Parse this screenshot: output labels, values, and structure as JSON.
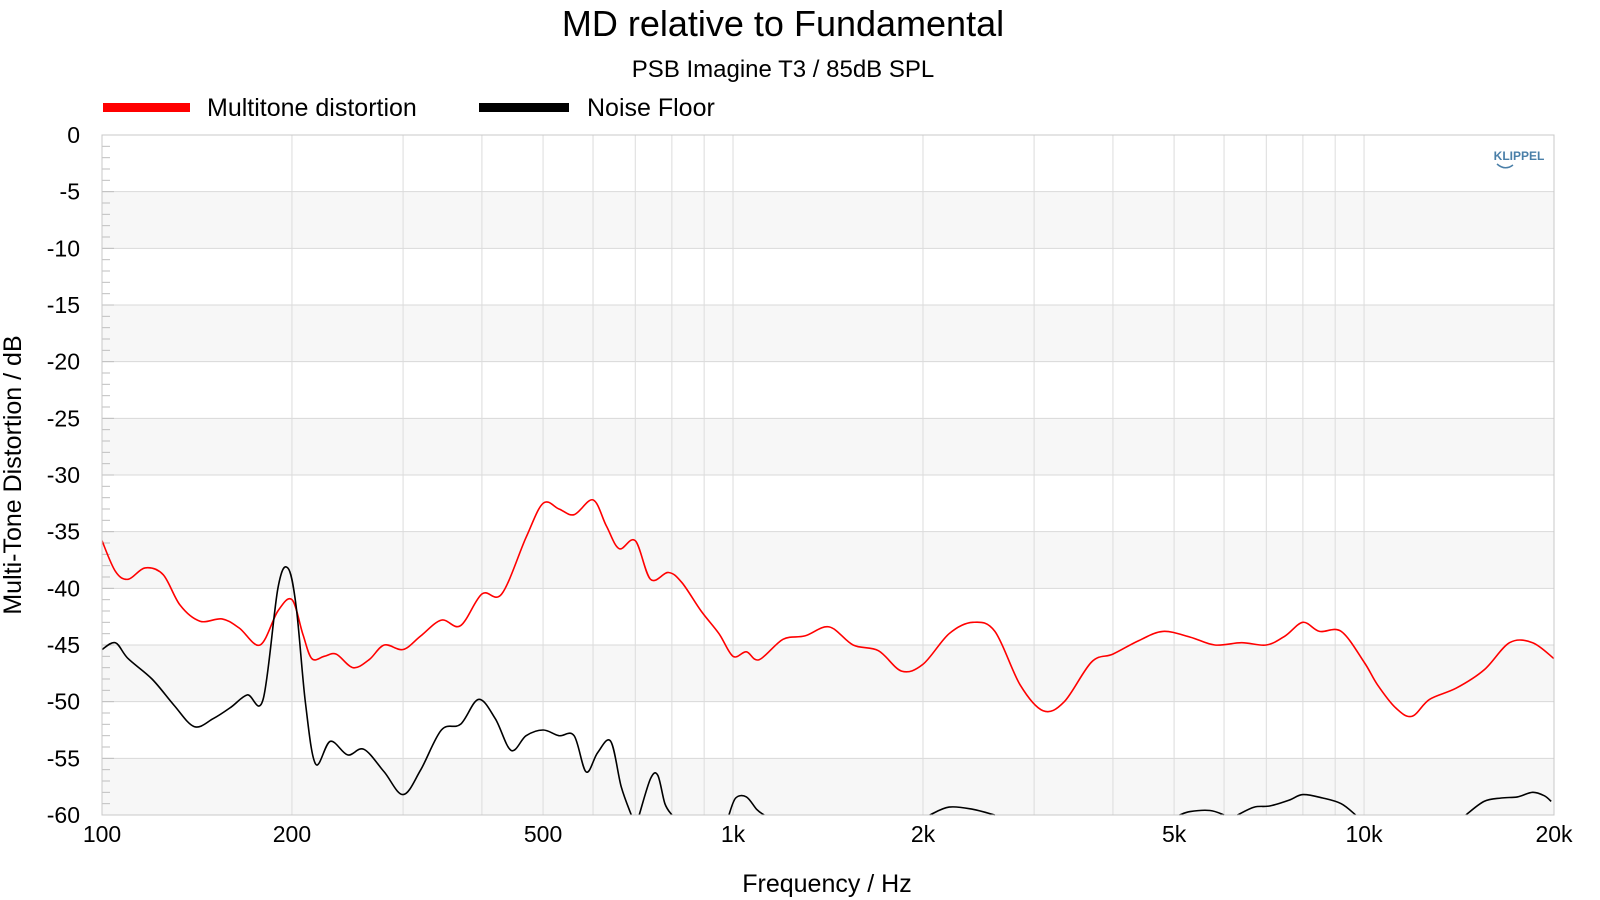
{
  "chart_data": {
    "type": "line",
    "title": "MD relative to Fundamental",
    "subtitle": "PSB Imagine T3 / 85dB SPL",
    "xlabel": "Frequency / Hz",
    "ylabel": "Multi-Tone Distortion / dB",
    "xscale": "log",
    "xlim": [
      100,
      20000
    ],
    "ylim": [
      -60,
      0
    ],
    "x_ticks": [
      100,
      200,
      500,
      1000,
      2000,
      5000,
      10000,
      20000
    ],
    "x_tick_labels": [
      "100",
      "200",
      "500",
      "1k",
      "2k",
      "5k",
      "10k",
      "20k"
    ],
    "y_ticks": [
      0,
      -5,
      -10,
      -15,
      -20,
      -25,
      -30,
      -35,
      -40,
      -45,
      -50,
      -55,
      -60
    ],
    "y_tick_labels": [
      "0",
      "-5",
      "-10",
      "-15",
      "-20",
      "-25",
      "-30",
      "-35",
      "-40",
      "-45",
      "-50",
      "-55",
      "-60"
    ],
    "grid": true,
    "legend_position": "top-left",
    "series": [
      {
        "name": "Multitone distortion",
        "color": "#ff0000",
        "points": [
          [
            100,
            -35.8
          ],
          [
            105,
            -38.5
          ],
          [
            110,
            -39.2
          ],
          [
            117,
            -38.2
          ],
          [
            125,
            -38.8
          ],
          [
            133,
            -41.5
          ],
          [
            143,
            -42.9
          ],
          [
            155,
            -42.7
          ],
          [
            165,
            -43.5
          ],
          [
            178,
            -45.0
          ],
          [
            190,
            -42.0
          ],
          [
            200,
            -41.0
          ],
          [
            208,
            -44.0
          ],
          [
            215,
            -46.2
          ],
          [
            225,
            -46.0
          ],
          [
            235,
            -45.8
          ],
          [
            250,
            -47.0
          ],
          [
            265,
            -46.3
          ],
          [
            280,
            -45.0
          ],
          [
            300,
            -45.4
          ],
          [
            320,
            -44.2
          ],
          [
            345,
            -42.8
          ],
          [
            370,
            -43.3
          ],
          [
            400,
            -40.5
          ],
          [
            430,
            -40.5
          ],
          [
            470,
            -35.5
          ],
          [
            500,
            -32.5
          ],
          [
            530,
            -33.0
          ],
          [
            560,
            -33.5
          ],
          [
            600,
            -32.2
          ],
          [
            630,
            -34.5
          ],
          [
            660,
            -36.5
          ],
          [
            700,
            -35.8
          ],
          [
            740,
            -39.2
          ],
          [
            790,
            -38.6
          ],
          [
            830,
            -39.5
          ],
          [
            890,
            -42.0
          ],
          [
            950,
            -44.0
          ],
          [
            1000,
            -46.0
          ],
          [
            1050,
            -45.6
          ],
          [
            1100,
            -46.3
          ],
          [
            1200,
            -44.5
          ],
          [
            1300,
            -44.2
          ],
          [
            1420,
            -43.4
          ],
          [
            1550,
            -45.0
          ],
          [
            1700,
            -45.5
          ],
          [
            1850,
            -47.3
          ],
          [
            2000,
            -46.7
          ],
          [
            2200,
            -44.0
          ],
          [
            2400,
            -43.0
          ],
          [
            2600,
            -43.8
          ],
          [
            2850,
            -48.5
          ],
          [
            3100,
            -50.8
          ],
          [
            3350,
            -50.0
          ],
          [
            3700,
            -46.5
          ],
          [
            4000,
            -45.8
          ],
          [
            4400,
            -44.6
          ],
          [
            4800,
            -43.8
          ],
          [
            5300,
            -44.3
          ],
          [
            5800,
            -45.0
          ],
          [
            6400,
            -44.8
          ],
          [
            7000,
            -45.0
          ],
          [
            7500,
            -44.2
          ],
          [
            8000,
            -43.0
          ],
          [
            8500,
            -43.8
          ],
          [
            9200,
            -43.8
          ],
          [
            10000,
            -46.5
          ],
          [
            10500,
            -48.5
          ],
          [
            11200,
            -50.5
          ],
          [
            11900,
            -51.3
          ],
          [
            12700,
            -49.8
          ],
          [
            14000,
            -48.8
          ],
          [
            15500,
            -47.2
          ],
          [
            17000,
            -44.8
          ],
          [
            18500,
            -44.8
          ],
          [
            20000,
            -46.2
          ]
        ]
      },
      {
        "name": "Noise Floor",
        "color": "#000000",
        "segments": [
          [
            [
              100,
              -45.4
            ],
            [
              105,
              -44.8
            ],
            [
              110,
              -46.2
            ],
            [
              120,
              -48.0
            ],
            [
              130,
              -50.3
            ],
            [
              140,
              -52.2
            ],
            [
              150,
              -51.5
            ],
            [
              160,
              -50.5
            ],
            [
              170,
              -49.4
            ],
            [
              180,
              -49.8
            ],
            [
              190,
              -40.0
            ],
            [
              197,
              -38.2
            ],
            [
              203,
              -41.5
            ],
            [
              210,
              -50.0
            ],
            [
              218,
              -55.5
            ],
            [
              230,
              -53.5
            ],
            [
              245,
              -54.7
            ],
            [
              260,
              -54.2
            ],
            [
              280,
              -56.2
            ],
            [
              300,
              -58.2
            ],
            [
              320,
              -56.0
            ],
            [
              345,
              -52.5
            ],
            [
              370,
              -52.0
            ],
            [
              395,
              -49.8
            ],
            [
              420,
              -51.5
            ],
            [
              445,
              -54.3
            ],
            [
              470,
              -53.0
            ],
            [
              500,
              -52.5
            ],
            [
              530,
              -53.0
            ],
            [
              560,
              -53.0
            ],
            [
              585,
              -56.2
            ],
            [
              610,
              -54.5
            ],
            [
              640,
              -53.5
            ],
            [
              665,
              -57.5
            ],
            [
              690,
              -60.0
            ]
          ],
          [
            [
              710,
              -60.0
            ],
            [
              740,
              -56.8
            ],
            [
              760,
              -56.5
            ],
            [
              780,
              -59.0
            ],
            [
              800,
              -60.0
            ]
          ],
          [
            [
              985,
              -60.0
            ],
            [
              1010,
              -58.5
            ],
            [
              1050,
              -58.4
            ],
            [
              1090,
              -59.5
            ],
            [
              1120,
              -60.0
            ]
          ],
          [
            [
              2050,
              -60.0
            ],
            [
              2200,
              -59.3
            ],
            [
              2400,
              -59.5
            ],
            [
              2600,
              -60.0
            ]
          ],
          [
            [
              5100,
              -60.0
            ],
            [
              5300,
              -59.7
            ],
            [
              5700,
              -59.6
            ],
            [
              6000,
              -60.0
            ]
          ],
          [
            [
              6300,
              -60.0
            ],
            [
              6700,
              -59.3
            ],
            [
              7100,
              -59.2
            ],
            [
              7600,
              -58.7
            ],
            [
              8000,
              -58.2
            ],
            [
              8600,
              -58.5
            ],
            [
              9200,
              -59.0
            ],
            [
              9700,
              -60.0
            ]
          ],
          [
            [
              14500,
              -60.0
            ],
            [
              15500,
              -58.8
            ],
            [
              16500,
              -58.5
            ],
            [
              17500,
              -58.4
            ],
            [
              18500,
              -58.0
            ],
            [
              19300,
              -58.3
            ],
            [
              19800,
              -58.8
            ]
          ]
        ]
      }
    ]
  },
  "legend": {
    "items": [
      {
        "label": "Multitone distortion",
        "color": "#ff0000"
      },
      {
        "label": "Noise Floor",
        "color": "#000000"
      }
    ]
  },
  "logo": {
    "text": "KLIPPEL"
  }
}
